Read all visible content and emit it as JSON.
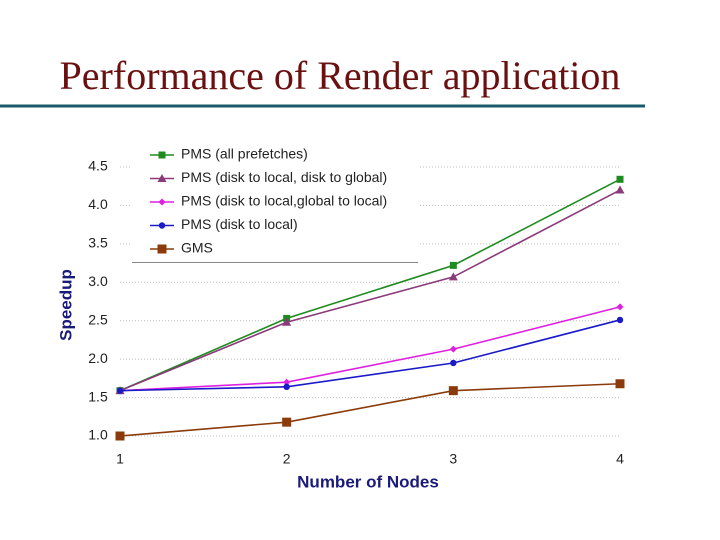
{
  "chart_data": {
    "type": "line",
    "title": "Performance of Render application",
    "x_label": "Number of Nodes",
    "y_label": "Speedup",
    "x": [
      1,
      2,
      3,
      4
    ],
    "xlim": [
      1,
      4
    ],
    "xticks": [
      1,
      2,
      3,
      4
    ],
    "ylim": [
      1,
      4.5
    ],
    "yticks": [
      {
        "value": 1,
        "label": "1.0"
      },
      1.5,
      {
        "value": 2,
        "label": "2.0"
      },
      2.5,
      {
        "value": 3,
        "label": "3.0"
      },
      3.5,
      {
        "value": 4,
        "label": "4.0"
      },
      4.5
    ],
    "grid": true,
    "legend": "top-left",
    "series": [
      {
        "name": "PMS (all prefetches)",
        "color": "#1f8a1f",
        "marker": "square",
        "values": [
          1.59,
          2.53,
          3.22,
          4.34
        ]
      },
      {
        "name": "PMS (disk to local, disk to global)",
        "color": "#8b3a7a",
        "marker": "triangle",
        "values": [
          1.59,
          2.48,
          3.07,
          4.2
        ]
      },
      {
        "name": "PMS (disk to local,global to local)",
        "color": "#e020e0",
        "marker": "diamond",
        "values": [
          1.59,
          1.7,
          2.13,
          2.68
        ]
      },
      {
        "name": "PMS (disk to local)",
        "color": "#1a1ac8",
        "marker": "circle",
        "values": [
          1.59,
          1.64,
          1.95,
          2.51
        ]
      },
      {
        "name": "GMS",
        "color": "#8b3a0a",
        "marker": "bigsquare",
        "values": [
          1.0,
          1.18,
          1.59,
          1.68
        ]
      }
    ]
  }
}
